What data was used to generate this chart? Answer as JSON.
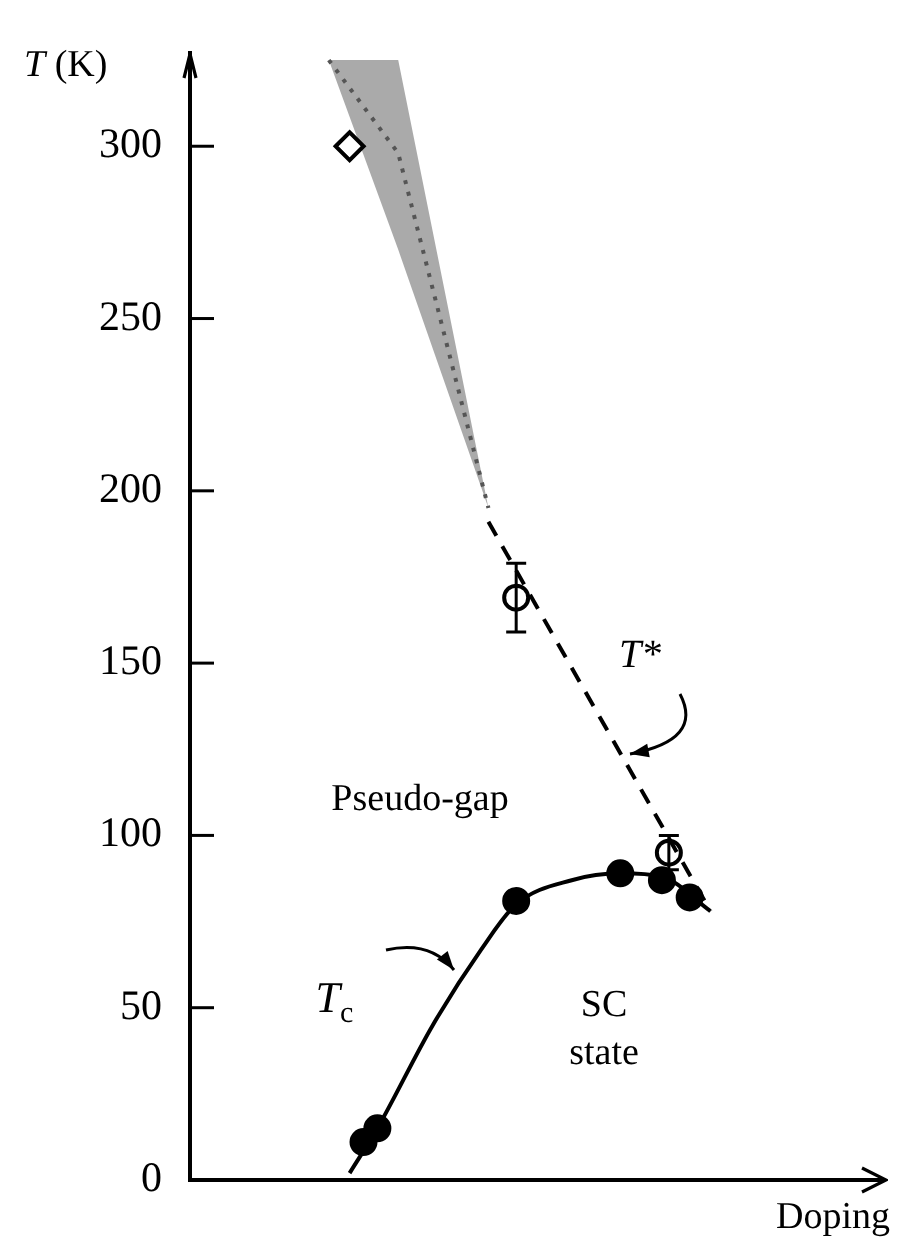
{
  "chart_data": {
    "type": "scatter",
    "xlabel": "Doping",
    "ylabel": "T (K)",
    "categories": [
      null,
      null,
      null,
      null,
      null,
      null,
      null,
      null,
      null,
      null,
      null,
      null,
      null,
      null,
      null,
      null,
      null,
      null,
      null,
      null,
      null,
      null,
      null,
      null,
      null,
      null,
      null,
      null,
      null,
      null,
      null,
      null,
      null,
      null,
      null,
      null,
      null,
      null,
      null,
      null,
      null,
      null,
      null,
      null,
      null,
      null,
      null,
      null,
      null,
      null,
      null,
      null,
      null,
      null,
      null,
      null,
      null,
      null,
      null,
      null,
      null,
      null,
      null,
      null,
      null,
      null,
      null,
      null,
      null,
      null,
      null,
      null,
      null,
      null,
      null,
      null,
      null,
      null,
      null,
      null,
      null,
      null,
      null,
      null,
      null,
      null,
      null,
      null,
      null,
      null,
      null,
      null,
      null,
      null,
      null,
      null,
      null,
      null,
      null,
      null,
      null
    ],
    "ylim": [
      0,
      327
    ],
    "yticks": [
      0,
      50,
      100,
      150,
      200,
      250,
      300
    ],
    "tick_labels": "y",
    "series": [
      {
        "type": "scatter",
        "color": "#000000",
        "marker": "circle",
        "values": [
          null,
          null,
          null,
          null,
          null,
          null,
          null,
          null,
          null,
          null,
          null,
          null,
          null,
          null,
          null,
          null,
          null,
          null,
          null,
          null,
          null,
          null,
          null,
          null,
          null,
          11,
          null,
          15,
          null,
          null,
          null,
          null,
          null,
          null,
          null,
          null,
          null,
          null,
          null,
          null,
          null,
          null,
          null,
          null,
          null,
          null,
          null,
          81,
          null,
          null,
          null,
          null,
          null,
          null,
          null,
          null,
          null,
          null,
          null,
          null,
          null,
          null,
          89,
          null,
          null,
          null,
          null,
          null,
          87,
          null,
          null,
          null,
          82,
          null,
          null,
          null,
          null,
          null,
          null,
          null,
          null,
          null,
          null,
          null,
          null,
          null,
          null,
          null,
          null,
          null,
          null,
          null,
          null,
          null,
          null,
          null,
          null,
          null,
          null,
          null,
          null
        ]
      },
      {
        "type": "line",
        "color": "#000000",
        "line_style": "solid",
        "values": [
          null,
          null,
          null,
          null,
          null,
          null,
          null,
          null,
          null,
          null,
          null,
          null,
          null,
          null,
          null,
          null,
          null,
          null,
          null,
          null,
          null,
          null,
          null,
          2,
          null,
          null,
          null,
          15,
          null,
          null,
          null,
          null,
          null,
          null,
          null,
          45,
          null,
          null,
          null,
          null,
          null,
          null,
          67,
          null,
          null,
          null,
          null,
          80,
          null,
          null,
          null,
          null,
          null,
          null,
          null,
          87,
          null,
          null,
          null,
          null,
          null,
          null,
          89,
          null,
          null,
          null,
          null,
          null,
          88,
          null,
          null,
          null,
          null,
          null,
          null,
          78,
          null,
          null,
          null,
          null,
          null,
          null,
          null,
          null,
          null,
          null,
          null,
          null,
          null,
          null,
          null,
          null,
          null,
          null,
          null,
          null,
          null,
          null,
          null,
          null,
          null
        ]
      },
      {
        "type": "scatter",
        "color": "#000000",
        "marker": "circle",
        "values": [
          null,
          null,
          null,
          null,
          null,
          null,
          null,
          null,
          null,
          null,
          null,
          null,
          null,
          null,
          null,
          null,
          null,
          null,
          null,
          null,
          null,
          null,
          null,
          null,
          null,
          null,
          null,
          null,
          null,
          null,
          null,
          null,
          null,
          null,
          null,
          null,
          null,
          null,
          null,
          null,
          null,
          null,
          null,
          null,
          null,
          null,
          null,
          169,
          null,
          null,
          null,
          null,
          null,
          null,
          null,
          null,
          null,
          null,
          null,
          null,
          null,
          null,
          null,
          null,
          null,
          null,
          null,
          null,
          null,
          95,
          null,
          null,
          null,
          null,
          null,
          null,
          null,
          null,
          null,
          null,
          null,
          null,
          null,
          null,
          null,
          null,
          null,
          null,
          null,
          null,
          null,
          null,
          null,
          null,
          null,
          null,
          null,
          null,
          null,
          null,
          null
        ],
        "errors": [
          null,
          null,
          null,
          null,
          null,
          null,
          null,
          null,
          null,
          null,
          null,
          null,
          null,
          null,
          null,
          null,
          null,
          null,
          null,
          null,
          null,
          null,
          null,
          null,
          null,
          null,
          null,
          null,
          null,
          null,
          null,
          null,
          null,
          null,
          null,
          null,
          null,
          null,
          null,
          null,
          null,
          null,
          null,
          null,
          null,
          null,
          null,
          10,
          null,
          null,
          null,
          null,
          null,
          null,
          null,
          null,
          null,
          null,
          null,
          null,
          null,
          null,
          null,
          null,
          null,
          null,
          null,
          null,
          null,
          5,
          null,
          null,
          null,
          null,
          null,
          null,
          null,
          null,
          null,
          null,
          null,
          null,
          null,
          null,
          null,
          null,
          null,
          null,
          null,
          null,
          null,
          null,
          null,
          null,
          null,
          null,
          null,
          null,
          null,
          null,
          null
        ]
      },
      {
        "type": "line",
        "color": "#000000",
        "line_style": "dashed",
        "values": [
          null,
          null,
          null,
          null,
          null,
          null,
          null,
          null,
          null,
          null,
          null,
          null,
          null,
          null,
          null,
          null,
          null,
          null,
          null,
          null,
          null,
          null,
          null,
          null,
          null,
          null,
          null,
          null,
          null,
          null,
          null,
          null,
          null,
          null,
          null,
          null,
          null,
          null,
          null,
          null,
          null,
          null,
          null,
          191,
          null,
          null,
          null,
          null,
          null,
          null,
          null,
          null,
          null,
          null,
          null,
          null,
          null,
          null,
          null,
          null,
          null,
          null,
          null,
          null,
          null,
          null,
          null,
          null,
          null,
          null,
          null,
          null,
          null,
          null,
          null,
          78,
          null,
          null,
          null,
          null,
          null,
          null,
          null,
          null,
          null,
          null,
          null,
          null,
          null,
          null,
          null,
          null,
          null,
          null,
          null,
          null,
          null,
          null,
          null,
          null,
          null
        ]
      },
      {
        "type": "scatter",
        "color": "#000000",
        "marker": "diamond",
        "values": [
          null,
          null,
          null,
          null,
          null,
          null,
          null,
          null,
          null,
          null,
          null,
          null,
          null,
          null,
          null,
          null,
          null,
          null,
          null,
          null,
          null,
          null,
          null,
          300,
          null,
          null,
          null,
          null,
          null,
          null,
          null,
          null,
          null,
          null,
          null,
          null,
          null,
          null,
          null,
          null,
          null,
          null,
          null,
          null,
          null,
          null,
          null,
          null,
          null,
          null,
          null,
          null,
          null,
          null,
          null,
          null,
          null,
          null,
          null,
          null,
          null,
          null,
          null,
          null,
          null,
          null,
          null,
          null,
          null,
          null,
          null,
          null,
          null,
          null,
          null,
          null,
          null,
          null,
          null,
          null,
          null,
          null,
          null,
          null,
          null,
          null,
          null,
          null,
          null,
          null,
          null,
          null,
          null,
          null,
          null,
          null,
          null,
          null,
          null,
          null,
          null
        ]
      },
      {
        "type": "line",
        "color": "#555555",
        "line_style": "dotted",
        "values": [
          null,
          null,
          null,
          null,
          null,
          null,
          null,
          null,
          null,
          null,
          null,
          null,
          null,
          null,
          null,
          null,
          null,
          null,
          null,
          null,
          325,
          null,
          null,
          null,
          null,
          null,
          null,
          null,
          null,
          null,
          298,
          null,
          null,
          null,
          null,
          null,
          null,
          null,
          null,
          null,
          null,
          null,
          null,
          195,
          null,
          null,
          null,
          null,
          null,
          null,
          null,
          null,
          null,
          null,
          null,
          null,
          null,
          null,
          null,
          null,
          null,
          null,
          null,
          null,
          null,
          null,
          null,
          null,
          null,
          null,
          null,
          null,
          null,
          null,
          null,
          null,
          null,
          null,
          null,
          null,
          null,
          null,
          null,
          null,
          null,
          null,
          null,
          null,
          null,
          null,
          null,
          null,
          null,
          null,
          null,
          null,
          null,
          null,
          null,
          null,
          null
        ],
        "lower": [
          null,
          null,
          null,
          null,
          null,
          null,
          null,
          null,
          null,
          null,
          null,
          null,
          null,
          null,
          null,
          null,
          null,
          null,
          null,
          null,
          325,
          null,
          null,
          null,
          null,
          null,
          null,
          null,
          null,
          null,
          270,
          null,
          null,
          null,
          null,
          null,
          null,
          null,
          null,
          null,
          null,
          null,
          null,
          195,
          null,
          null,
          null,
          null,
          null,
          null,
          null,
          null,
          null,
          null,
          null,
          null,
          null,
          null,
          null,
          null,
          null,
          null,
          null,
          null,
          null,
          null,
          null,
          null,
          null,
          null,
          null,
          null,
          null,
          null,
          null,
          null,
          null,
          null,
          null,
          null,
          null,
          null,
          null,
          null,
          null,
          null,
          null,
          null,
          null,
          null,
          null,
          null,
          null,
          null,
          null,
          null,
          null,
          null,
          null,
          null,
          null
        ],
        "upper": [
          null,
          null,
          null,
          null,
          null,
          null,
          null,
          null,
          null,
          null,
          null,
          null,
          null,
          null,
          null,
          null,
          null,
          null,
          null,
          null,
          325,
          null,
          null,
          null,
          null,
          null,
          null,
          null,
          null,
          null,
          325,
          null,
          null,
          null,
          null,
          null,
          null,
          null,
          null,
          null,
          null,
          null,
          null,
          195,
          null,
          null,
          null,
          null,
          null,
          null,
          null,
          null,
          null,
          null,
          null,
          null,
          null,
          null,
          null,
          null,
          null,
          null,
          null,
          null,
          null,
          null,
          null,
          null,
          null,
          null,
          null,
          null,
          null,
          null,
          null,
          null,
          null,
          null,
          null,
          null,
          null,
          null,
          null,
          null,
          null,
          null,
          null,
          null,
          null,
          null,
          null,
          null,
          null,
          null,
          null,
          null,
          null,
          null,
          null,
          null,
          null
        ]
      }
    ],
    "annotations": [
      "Pseudo-gap",
      "SC state",
      "T*",
      "T$_{c}$"
    ]
  }
}
